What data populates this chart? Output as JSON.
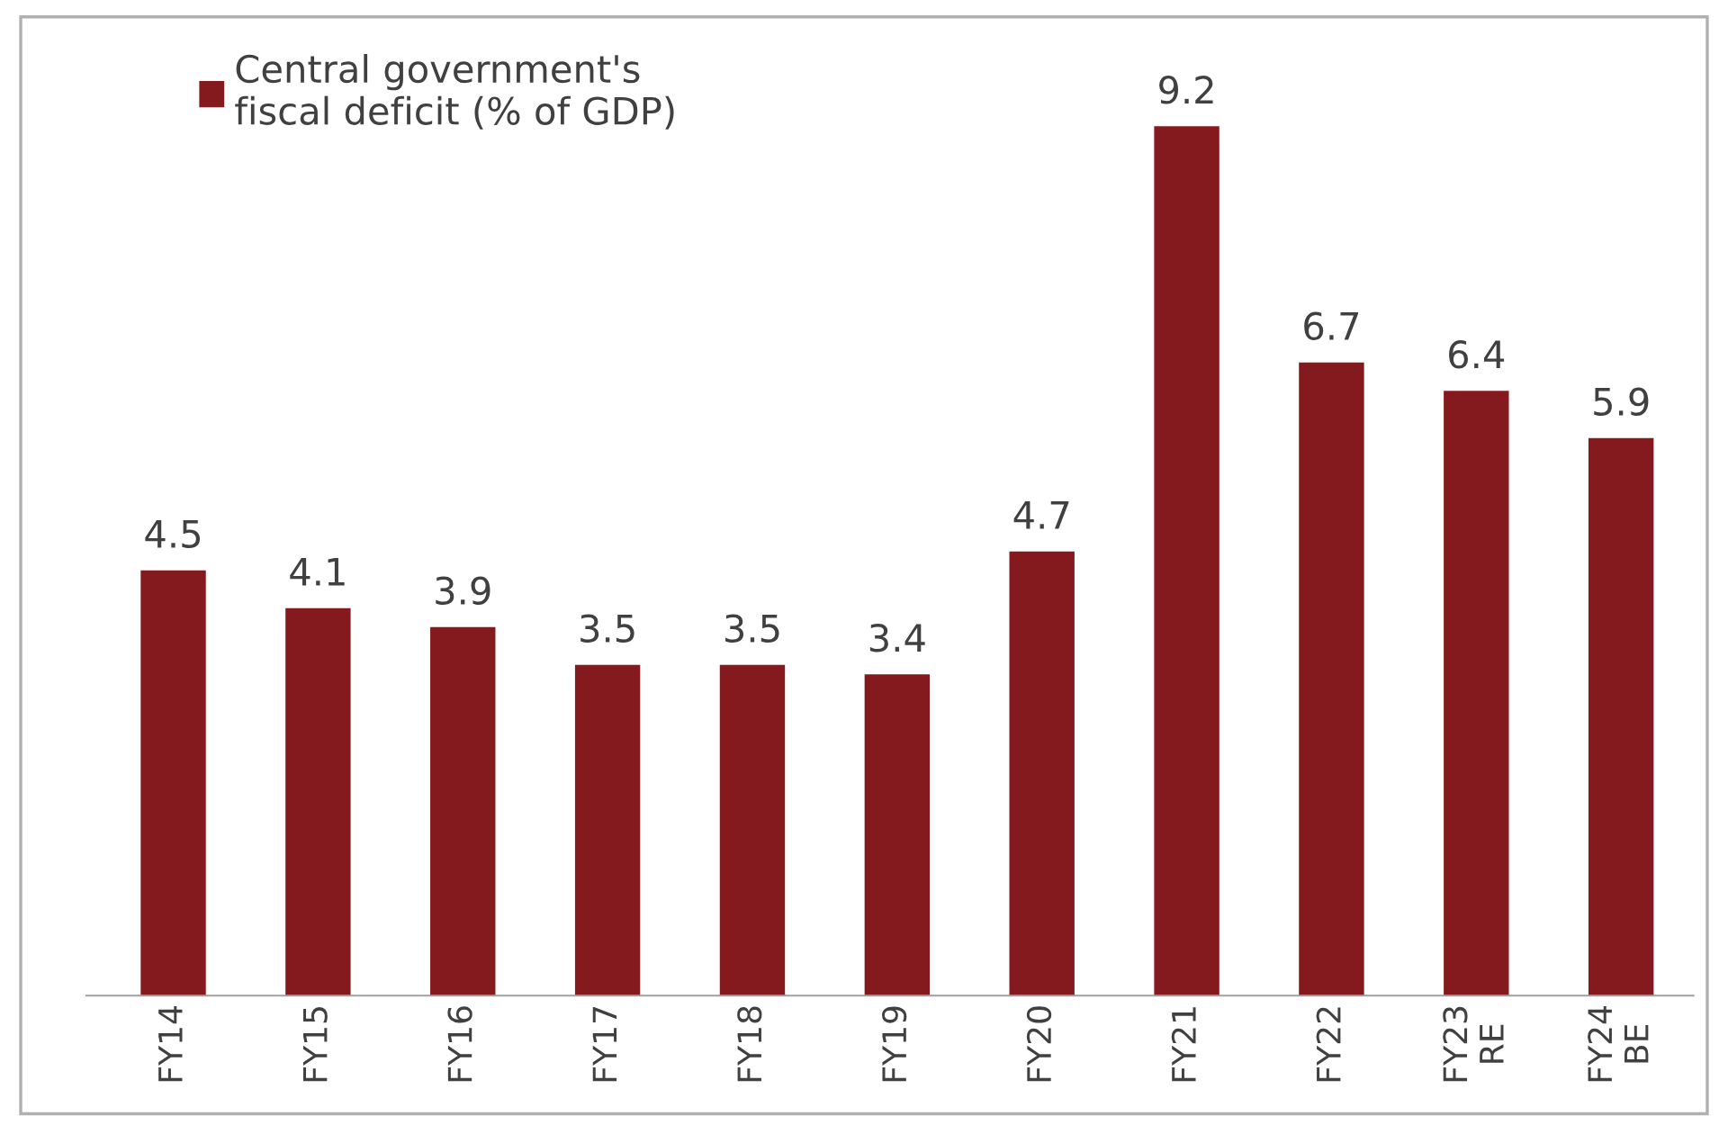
{
  "chart_data": {
    "type": "bar",
    "categories": [
      "FY14",
      "FY15",
      "FY16",
      "FY17",
      "FY18",
      "FY19",
      "FY20",
      "FY21",
      "FY22",
      "FY23\nRE",
      "FY24\nBE"
    ],
    "series": [
      {
        "name": "Central government's\nfiscal deficit (% of GDP)",
        "color": "#841a1e",
        "values": [
          4.5,
          4.1,
          3.9,
          3.5,
          3.5,
          3.4,
          4.7,
          9.2,
          6.7,
          6.4,
          5.9
        ]
      }
    ],
    "data_labels": true,
    "legend": "top left",
    "grid": false
  }
}
